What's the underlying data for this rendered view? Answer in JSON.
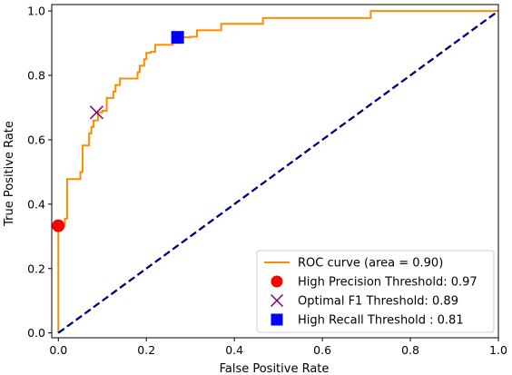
{
  "chart_data": {
    "type": "line",
    "title": "",
    "xlabel": "False Positive Rate",
    "ylabel": "True Positive Rate",
    "xlim": [
      -0.015,
      1.0
    ],
    "ylim": [
      -0.015,
      1.02
    ],
    "xticks": [
      0.0,
      0.2,
      0.4,
      0.6,
      0.8,
      1.0
    ],
    "yticks": [
      0.0,
      0.2,
      0.4,
      0.6,
      0.8,
      1.0
    ],
    "xtick_labels": [
      "0.0",
      "0.2",
      "0.4",
      "0.6",
      "0.8",
      "1.0"
    ],
    "ytick_labels": [
      "0.0",
      "0.2",
      "0.4",
      "0.6",
      "0.8",
      "1.0"
    ],
    "grid": false,
    "legend_position": "lower-right",
    "series": [
      {
        "name": "ROC curve (area = 0.90)",
        "kind": "line",
        "color": "#ff8c00",
        "x": [
          0.0,
          0.0,
          0.015,
          0.015,
          0.02,
          0.02,
          0.05,
          0.05,
          0.055,
          0.055,
          0.07,
          0.07,
          0.075,
          0.075,
          0.08,
          0.08,
          0.09,
          0.09,
          0.1,
          0.1,
          0.11,
          0.11,
          0.125,
          0.125,
          0.13,
          0.13,
          0.14,
          0.14,
          0.18,
          0.18,
          0.185,
          0.185,
          0.195,
          0.195,
          0.2,
          0.2,
          0.21,
          0.21,
          0.22,
          0.22,
          0.26,
          0.26,
          0.28,
          0.28,
          0.3,
          0.3,
          0.315,
          0.315,
          0.37,
          0.37,
          0.465,
          0.465,
          0.71,
          0.71,
          1.0
        ],
        "y": [
          0.0,
          0.333,
          0.333,
          0.355,
          0.355,
          0.478,
          0.478,
          0.5,
          0.5,
          0.582,
          0.582,
          0.62,
          0.62,
          0.64,
          0.64,
          0.66,
          0.66,
          0.685,
          0.685,
          0.69,
          0.69,
          0.73,
          0.73,
          0.75,
          0.75,
          0.77,
          0.77,
          0.79,
          0.79,
          0.81,
          0.81,
          0.83,
          0.83,
          0.85,
          0.85,
          0.87,
          0.87,
          0.873,
          0.873,
          0.895,
          0.895,
          0.91,
          0.91,
          0.918,
          0.918,
          0.92,
          0.92,
          0.94,
          0.94,
          0.96,
          0.96,
          0.978,
          0.978,
          1.0,
          1.0
        ]
      },
      {
        "name": "",
        "kind": "dashed-line",
        "color": "#000080",
        "x": [
          0.0,
          1.0
        ],
        "y": [
          0.0,
          1.0
        ]
      }
    ],
    "points": [
      {
        "name": "High Precision Threshold: 0.97",
        "marker": "circle",
        "color": "#ff0000",
        "x": 0.0,
        "y": 0.333
      },
      {
        "name": "Optimal F1 Threshold: 0.89",
        "marker": "x",
        "color": "#800080",
        "x": 0.087,
        "y": 0.685
      },
      {
        "name": "High Recall Threshold : 0.81",
        "marker": "square",
        "color": "#0000ff",
        "x": 0.271,
        "y": 0.918
      }
    ]
  }
}
